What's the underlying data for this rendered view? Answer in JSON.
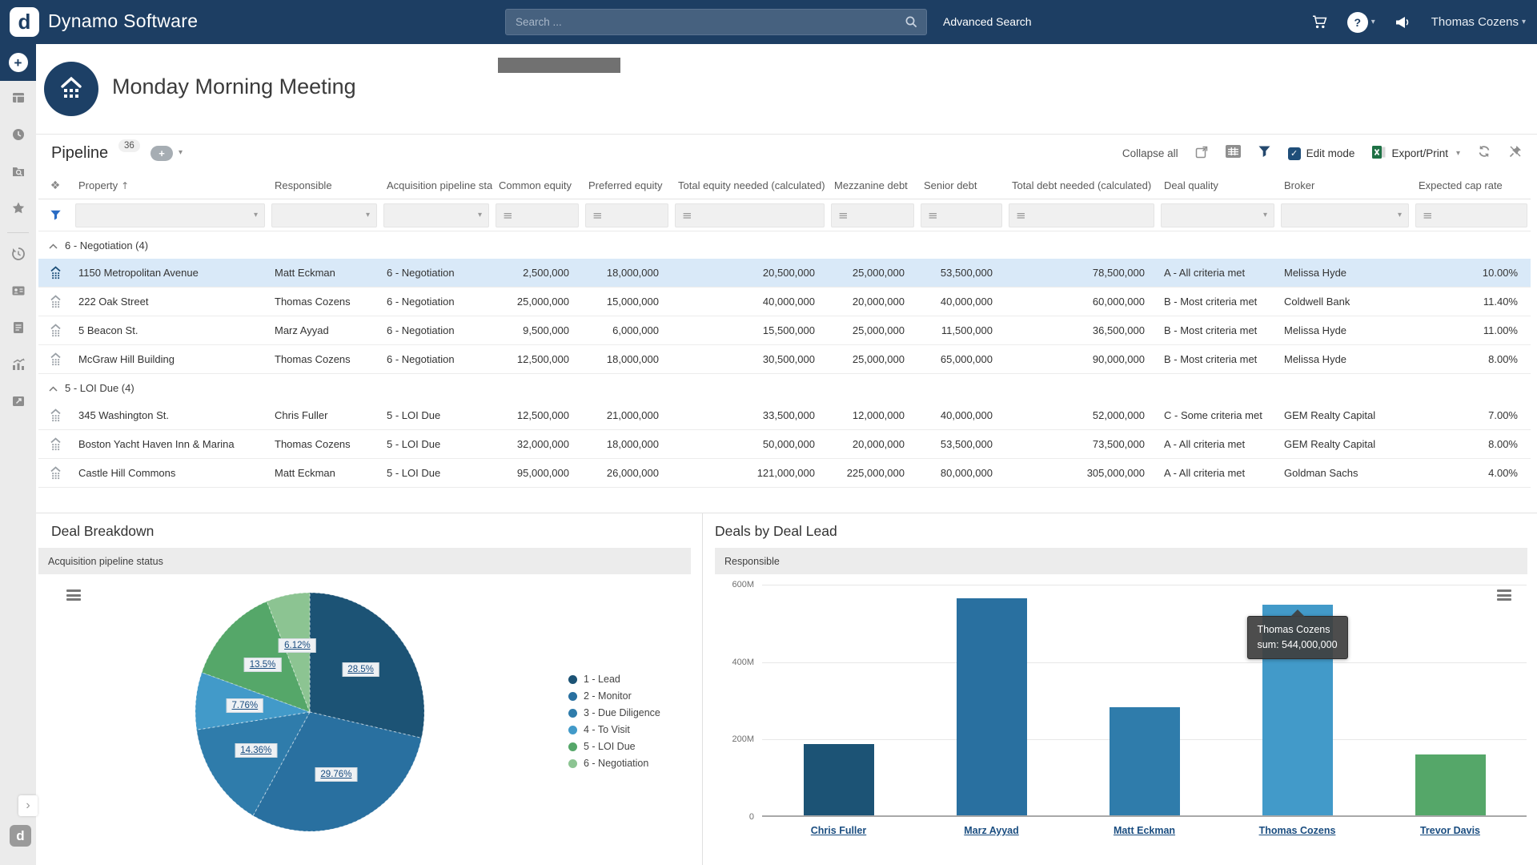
{
  "topbar": {
    "brand": "Dynamo Software",
    "search_placeholder": "Search ...",
    "advanced_search_label": "Advanced Search",
    "user_name": "Thomas Cozens"
  },
  "page": {
    "title": "Monday Morning Meeting"
  },
  "icons": {
    "plus": "+",
    "question_mark": "?",
    "caret_down": "▾",
    "sort_ascending": "↑",
    "column_reorder": "❖",
    "menu": "≡",
    "check": "✓",
    "chevron_right": "›",
    "logo_letter": "d"
  },
  "sidebar": {
    "items": [
      "add",
      "dashboards",
      "recent",
      "research",
      "favorites",
      "history",
      "contacts",
      "documents",
      "reports",
      "media"
    ]
  },
  "pipeline": {
    "title": "Pipeline",
    "record_count": "36",
    "toolbar": {
      "collapse_all_label": "Collapse all",
      "edit_mode_label": "Edit mode",
      "export_print_label": "Export/Print"
    },
    "columns": [
      "Property",
      "Responsible",
      "Acquisition pipeline status",
      "Common equity",
      "Preferred equity",
      "Total equity needed (calculated)",
      "Mezzanine debt",
      "Senior debt",
      "Total debt needed (calculated)",
      "Deal quality",
      "Broker",
      "Expected cap rate"
    ],
    "groups": [
      {
        "label": "6 - Negotiation (4)",
        "rows": [
          {
            "selected": true,
            "cells": [
              "1150 Metropolitan Avenue",
              "Matt Eckman",
              "6 - Negotiation",
              "2,500,000",
              "18,000,000",
              "20,500,000",
              "25,000,000",
              "53,500,000",
              "78,500,000",
              "A - All criteria met",
              "Melissa Hyde",
              "10.00%"
            ]
          },
          {
            "selected": false,
            "cells": [
              "222 Oak Street",
              "Thomas Cozens",
              "6 - Negotiation",
              "25,000,000",
              "15,000,000",
              "40,000,000",
              "20,000,000",
              "40,000,000",
              "60,000,000",
              "B - Most criteria met",
              "Coldwell Bank",
              "11.40%"
            ]
          },
          {
            "selected": false,
            "cells": [
              "5 Beacon St.",
              "Marz Ayyad",
              "6 - Negotiation",
              "9,500,000",
              "6,000,000",
              "15,500,000",
              "25,000,000",
              "11,500,000",
              "36,500,000",
              "B - Most criteria met",
              "Melissa Hyde",
              "11.00%"
            ]
          },
          {
            "selected": false,
            "cells": [
              "McGraw Hill Building",
              "Thomas Cozens",
              "6 - Negotiation",
              "12,500,000",
              "18,000,000",
              "30,500,000",
              "25,000,000",
              "65,000,000",
              "90,000,000",
              "B - Most criteria met",
              "Melissa Hyde",
              "8.00%"
            ]
          }
        ]
      },
      {
        "label": "5 - LOI Due (4)",
        "rows": [
          {
            "selected": false,
            "cells": [
              "345 Washington St.",
              "Chris Fuller",
              "5 - LOI Due",
              "12,500,000",
              "21,000,000",
              "33,500,000",
              "12,000,000",
              "40,000,000",
              "52,000,000",
              "C - Some criteria met",
              "GEM Realty Capital",
              "7.00%"
            ]
          },
          {
            "selected": false,
            "cells": [
              "Boston Yacht Haven Inn & Marina",
              "Thomas Cozens",
              "5 - LOI Due",
              "32,000,000",
              "18,000,000",
              "50,000,000",
              "20,000,000",
              "53,500,000",
              "73,500,000",
              "A - All criteria met",
              "GEM Realty Capital",
              "8.00%"
            ]
          },
          {
            "selected": false,
            "cells": [
              "Castle Hill Commons",
              "Matt Eckman",
              "5 - LOI Due",
              "95,000,000",
              "26,000,000",
              "121,000,000",
              "225,000,000",
              "80,000,000",
              "305,000,000",
              "A - All criteria met",
              "Goldman Sachs",
              "4.00%"
            ]
          }
        ]
      }
    ]
  },
  "chart_data": [
    {
      "type": "pie",
      "title": "Deal Breakdown",
      "subtitle": "Acquisition pipeline status",
      "labels": [
        "1 - Lead",
        "2 - Monitor",
        "3 - Due Diligence",
        "4 - To Visit",
        "5 - LOI Due",
        "6 - Negotiation"
      ],
      "values_pct": [
        28.5,
        29.76,
        14.36,
        7.76,
        13.5,
        6.12
      ],
      "value_labels": [
        "28.5%",
        "29.76%",
        "14.36%",
        "7.76%",
        "13.5%",
        "6.12%"
      ],
      "colors": [
        "#1c5375",
        "#2970a0",
        "#2f7cab",
        "#429ac9",
        "#55a769",
        "#8cc492"
      ],
      "legend_position": "right"
    },
    {
      "type": "bar",
      "title": "Deals by Deal Lead",
      "subtitle": "Responsible",
      "categories": [
        "Chris Fuller",
        "Marz Ayyad",
        "Matt Eckman",
        "Thomas Cozens",
        "Trevor Davis"
      ],
      "values": [
        185000000,
        560000000,
        280000000,
        544000000,
        157000000
      ],
      "colors": [
        "#1c5375",
        "#2970a0",
        "#2f7cab",
        "#429ac9",
        "#55a769"
      ],
      "yticks": [
        "600M",
        "400M",
        "200M",
        "0"
      ],
      "ylim": [
        0,
        600000000
      ],
      "grid": true,
      "tooltip": {
        "name": "Thomas Cozens",
        "text": "sum: 544,000,000"
      }
    }
  ]
}
